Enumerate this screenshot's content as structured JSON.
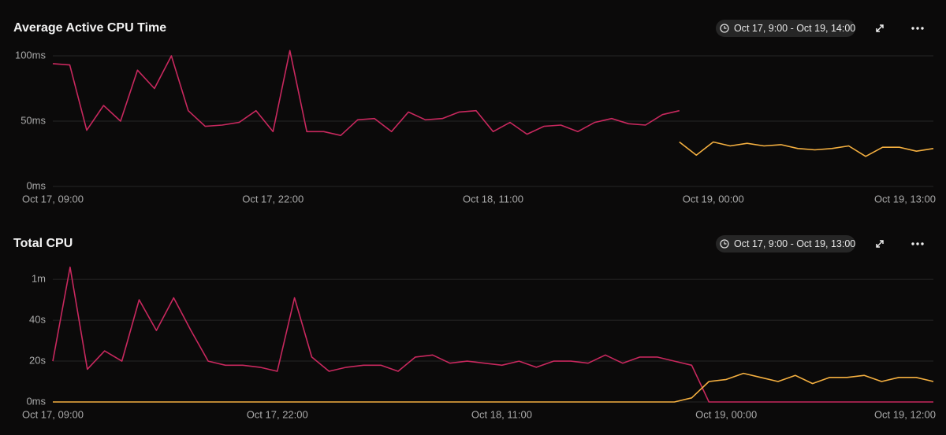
{
  "chart_data": [
    {
      "type": "line",
      "title": "Average Active CPU Time",
      "time_range": "Oct 17, 9:00 - Oct 19, 14:00",
      "categories": [
        "Oct 17, 09:00",
        null,
        null,
        null,
        null,
        null,
        null,
        null,
        null,
        null,
        null,
        null,
        null,
        "Oct 17, 22:00",
        null,
        null,
        null,
        null,
        null,
        null,
        null,
        null,
        null,
        null,
        null,
        null,
        "Oct 18, 11:00",
        null,
        null,
        null,
        null,
        null,
        null,
        null,
        null,
        null,
        null,
        null,
        null,
        "Oct 19, 00:00",
        null,
        null,
        null,
        null,
        null,
        null,
        null,
        null,
        null,
        null,
        null,
        null,
        "Oct 19, 13:00"
      ],
      "series": [
        {
          "color": "#c8285e",
          "values": [
            94,
            93,
            43,
            62,
            50,
            89,
            75,
            100,
            58,
            46,
            47,
            49,
            58,
            42,
            104,
            42,
            42,
            39,
            51,
            52,
            42,
            57,
            51,
            52,
            57,
            58,
            42,
            49,
            40,
            46,
            47,
            42,
            49,
            52,
            48,
            47,
            55,
            58,
            null,
            null,
            null,
            null,
            null,
            null,
            null,
            null,
            null,
            null,
            null,
            null,
            null,
            null,
            null
          ]
        },
        {
          "color": "#f5b040",
          "values": [
            null,
            null,
            null,
            null,
            null,
            null,
            null,
            null,
            null,
            null,
            null,
            null,
            null,
            null,
            null,
            null,
            null,
            null,
            null,
            null,
            null,
            null,
            null,
            null,
            null,
            null,
            null,
            null,
            null,
            null,
            null,
            null,
            null,
            null,
            null,
            null,
            null,
            34,
            24,
            34,
            31,
            33,
            31,
            32,
            29,
            28,
            29,
            31,
            23,
            30,
            30,
            27,
            29
          ]
        }
      ],
      "ylim": [
        0,
        106
      ],
      "yticks": [
        {
          "value": 0,
          "label": "0ms"
        },
        {
          "value": 50,
          "label": "50ms"
        },
        {
          "value": 100,
          "label": "100ms"
        }
      ],
      "grid": true
    },
    {
      "type": "line",
      "title": "Total CPU",
      "time_range": "Oct 17, 9:00 - Oct 19, 13:00",
      "categories": [
        "Oct 17, 09:00",
        null,
        null,
        null,
        null,
        null,
        null,
        null,
        null,
        null,
        null,
        null,
        null,
        "Oct 17, 22:00",
        null,
        null,
        null,
        null,
        null,
        null,
        null,
        null,
        null,
        null,
        null,
        null,
        "Oct 18, 11:00",
        null,
        null,
        null,
        null,
        null,
        null,
        null,
        null,
        null,
        null,
        null,
        null,
        "Oct 19, 00:00",
        null,
        null,
        null,
        null,
        null,
        null,
        null,
        null,
        null,
        null,
        null,
        "Oct 19, 12:00"
      ],
      "series": [
        {
          "color": "#c8285e",
          "values": [
            20,
            66,
            16,
            25,
            20,
            50,
            35,
            51,
            35,
            20,
            18,
            18,
            17,
            15,
            51,
            22,
            15,
            17,
            18,
            18,
            15,
            22,
            23,
            19,
            20,
            19,
            18,
            20,
            17,
            20,
            20,
            19,
            23,
            19,
            22,
            22,
            20,
            18,
            0,
            0,
            0,
            0,
            0,
            0,
            0,
            0,
            0,
            0,
            0,
            0,
            0,
            0
          ]
        },
        {
          "color": "#f5b040",
          "values": [
            0,
            0,
            0,
            0,
            0,
            0,
            0,
            0,
            0,
            0,
            0,
            0,
            0,
            0,
            0,
            0,
            0,
            0,
            0,
            0,
            0,
            0,
            0,
            0,
            0,
            0,
            0,
            0,
            0,
            0,
            0,
            0,
            0,
            0,
            0,
            0,
            0,
            2,
            10,
            11,
            14,
            12,
            10,
            13,
            9,
            12,
            12,
            13,
            10,
            12,
            12,
            10
          ]
        }
      ],
      "ylim": [
        0,
        67
      ],
      "yticks": [
        {
          "value": 0,
          "label": "0ms"
        },
        {
          "value": 20,
          "label": "20s"
        },
        {
          "value": 40,
          "label": "40s"
        },
        {
          "value": 60,
          "label": "1m"
        }
      ],
      "grid": true
    }
  ]
}
